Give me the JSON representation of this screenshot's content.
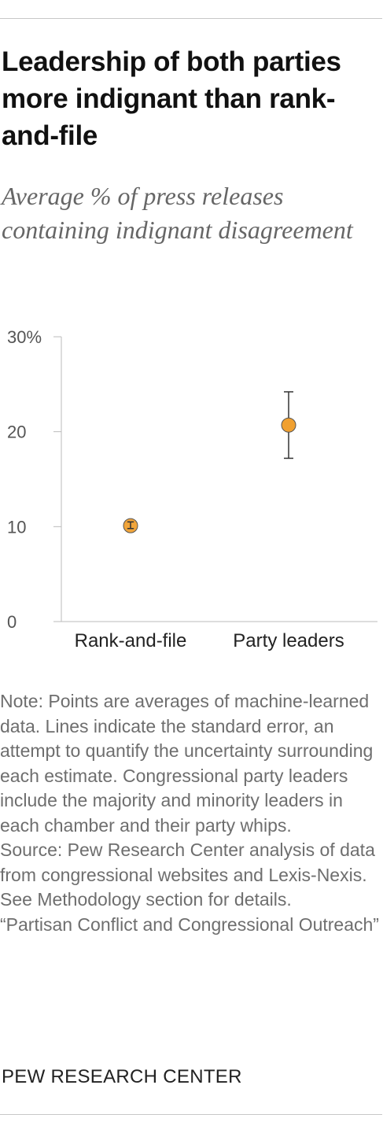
{
  "header": {
    "title": "Leadership of both parties more indignant than rank-and-file",
    "subtitle": "Average % of press releases containing indignant disagreement"
  },
  "chart_data": {
    "type": "scatter",
    "categories": [
      "Rank-and-file",
      "Party leaders"
    ],
    "values": [
      10.1,
      20.7
    ],
    "error_low": [
      9.8,
      17.2
    ],
    "error_high": [
      10.5,
      24.2
    ],
    "ylim": [
      0,
      30
    ],
    "yticks": [
      0,
      10,
      20,
      30
    ],
    "ytick_labels": [
      "0",
      "10",
      "20",
      "30%"
    ],
    "grid": false,
    "point_color": "#f0a030",
    "point_stroke": "#333333",
    "axis_color": "#bbbbbb"
  },
  "notes": {
    "note": "Note: Points are averages of machine-learned data. Lines indicate the standard error, an attempt to quantify the uncertainty surrounding each estimate. Congressional party leaders include the majority and minority leaders in each chamber and their party whips.",
    "source": "Source: Pew Research Center analysis of data from congressional websites and Lexis-Nexis. See Methodology section for details.",
    "report": "“Partisan Conflict and Congressional Outreach”"
  },
  "footer": {
    "brand": "PEW RESEARCH CENTER"
  }
}
